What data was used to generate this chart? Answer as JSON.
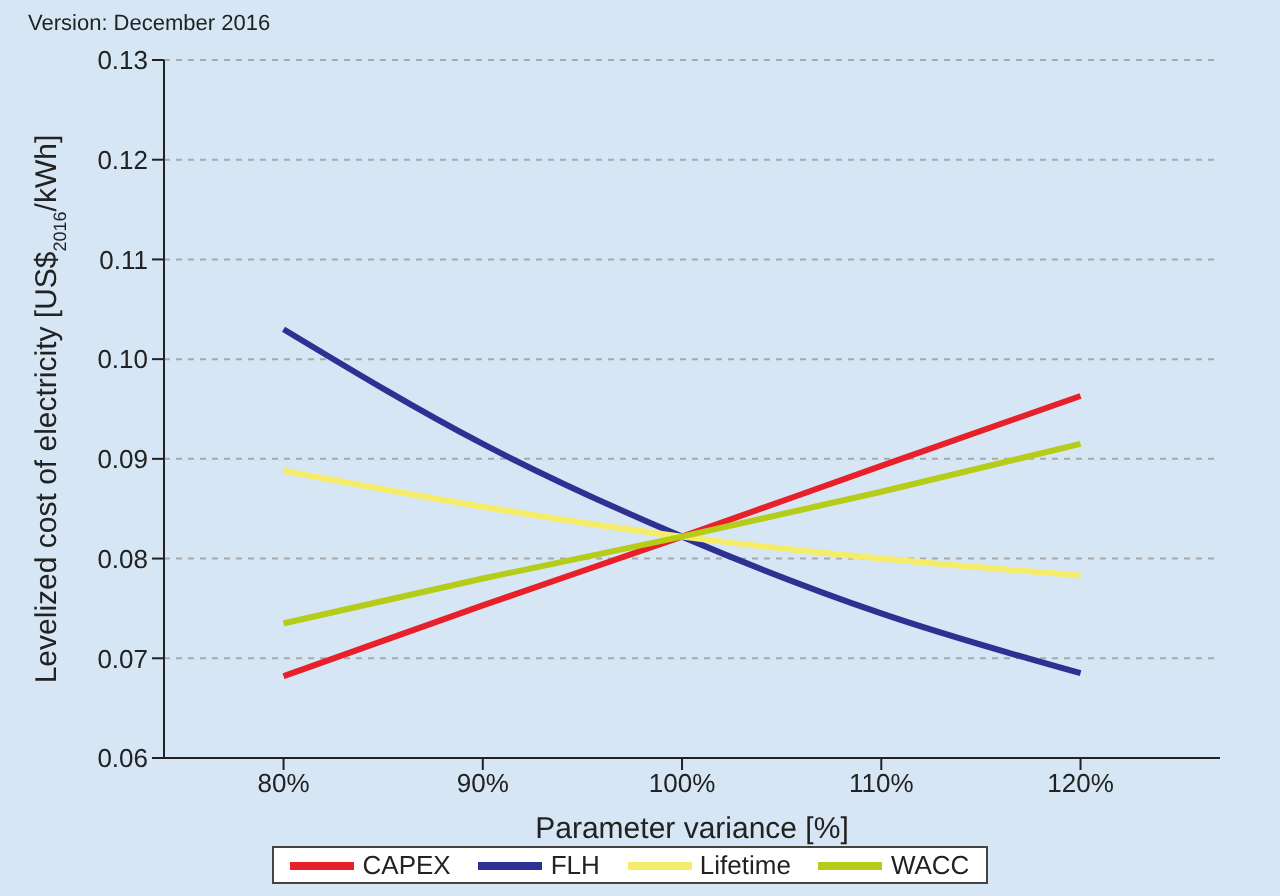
{
  "chart_data": {
    "type": "line",
    "xlabel": "Parameter variance [%]",
    "ylabel": "Levelized cost of electricity [US$$_{2016}$/kWh]",
    "annotations": [
      "Version: December 2016"
    ],
    "x": [
      80,
      90,
      100,
      110,
      120
    ],
    "series": [
      {
        "name": "CAPEX",
        "color": "#e8202a",
        "values": [
          0.0682,
          0.0753,
          0.0822,
          0.0893,
          0.0963
        ]
      },
      {
        "name": "FLH",
        "color": "#2e3192",
        "values": [
          0.103,
          0.0915,
          0.0822,
          0.0745,
          0.0685
        ]
      },
      {
        "name": "Lifetime",
        "color": "#f5ec6a",
        "values": [
          0.0888,
          0.0852,
          0.0822,
          0.08,
          0.0783
        ]
      },
      {
        "name": "WACC",
        "color": "#b5cc18",
        "values": [
          0.0735,
          0.078,
          0.0822,
          0.0867,
          0.0915
        ]
      }
    ],
    "xlim": [
      74,
      127
    ],
    "xticks": [
      {
        "value": 80,
        "label": "80%"
      },
      {
        "value": 90,
        "label": "90%"
      },
      {
        "value": 100,
        "label": "100%"
      },
      {
        "value": 110,
        "label": "110%"
      },
      {
        "value": 120,
        "label": "120%"
      }
    ],
    "ylim": [
      0.06,
      0.13
    ],
    "yticks": [
      {
        "value": 0.06,
        "label": "0.06"
      },
      {
        "value": 0.07,
        "label": "0.07"
      },
      {
        "value": 0.08,
        "label": "0.08"
      },
      {
        "value": 0.09,
        "label": "0.09"
      },
      {
        "value": 0.1,
        "label": "0.10"
      },
      {
        "value": 0.11,
        "label": "0.11"
      },
      {
        "value": 0.12,
        "label": "0.12"
      },
      {
        "value": 0.13,
        "label": "0.13"
      }
    ],
    "grid": "y",
    "legend": "bottom",
    "marker": "none",
    "line_style": "solid"
  }
}
